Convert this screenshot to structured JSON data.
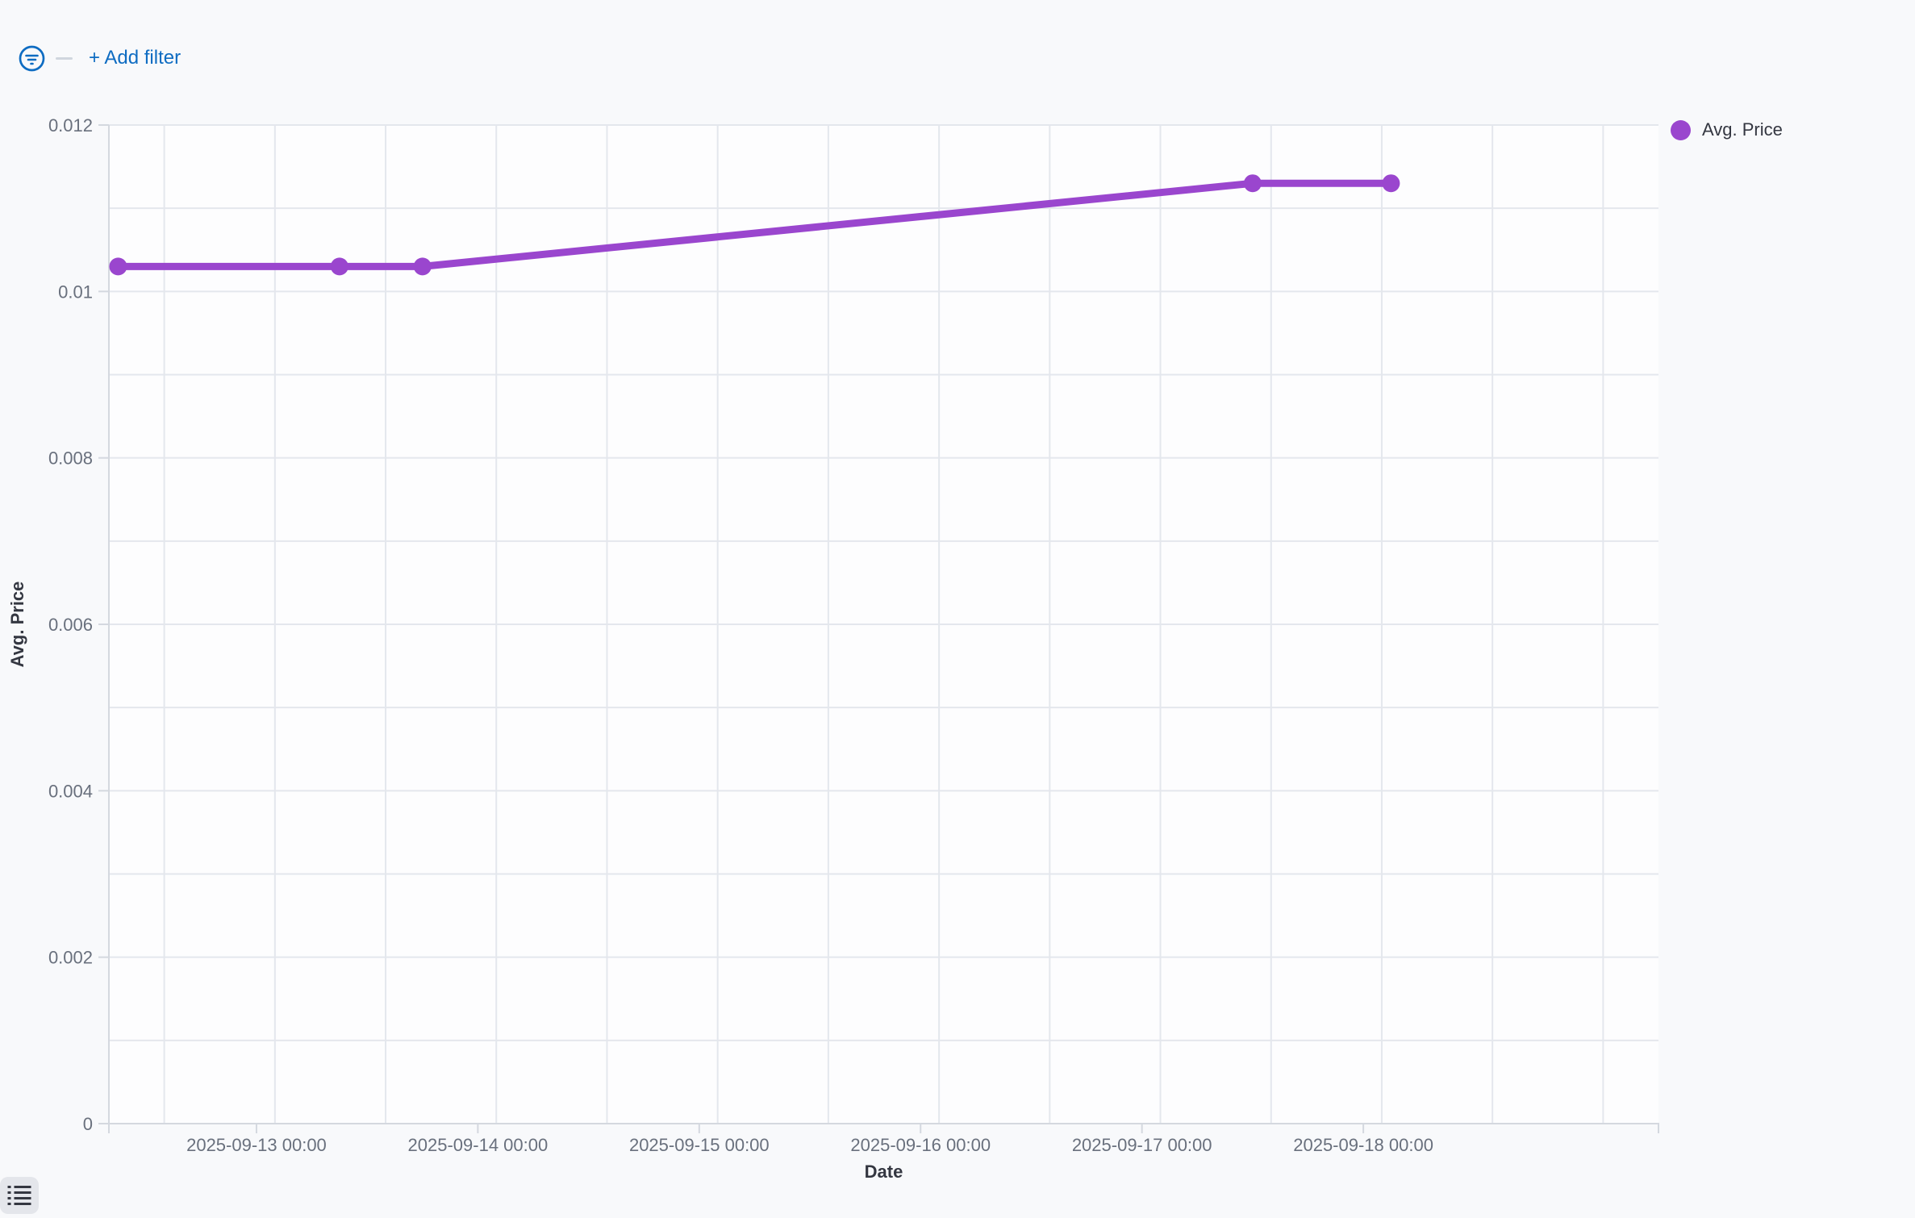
{
  "filter_bar": {
    "filter_icon": "filter-in-circle-icon",
    "add_filter_label": "+ Add filter"
  },
  "legend": {
    "position": "right",
    "items": [
      {
        "label": "Avg. Price",
        "color": "#9a46ce"
      }
    ]
  },
  "toolbar": {
    "bottom_left_icon": "unordered-list-icon"
  },
  "colors": {
    "link_blue": "#0e6cc2",
    "series_purple": "#9a46ce",
    "gridline": "#e4e7ed",
    "axis_line": "#d4d8df",
    "tick_label": "#69707d",
    "axis_title": "#343741",
    "page_background": "#f8f9fb",
    "plot_background": "#fdfdfe"
  },
  "chart_data": {
    "type": "line",
    "title": "",
    "xlabel": "Date",
    "ylabel": "Avg. Price",
    "legend_position": "right",
    "grid": true,
    "ylim": [
      0,
      0.012
    ],
    "y_grid_step": 0.001,
    "y_ticks": [
      {
        "v": 0,
        "label": "0"
      },
      {
        "v": 0.002,
        "label": "0.002"
      },
      {
        "v": 0.004,
        "label": "0.004"
      },
      {
        "v": 0.006,
        "label": "0.006"
      },
      {
        "v": 0.008,
        "label": "0.008"
      },
      {
        "v": 0.01,
        "label": "0.01"
      },
      {
        "v": 0.012,
        "label": "0.012"
      }
    ],
    "x_domain": [
      "2025-09-12 08:00",
      "2025-09-19 08:00"
    ],
    "x_ticks": [
      {
        "t": "2025-09-12 08:00",
        "label": ""
      },
      {
        "t": "2025-09-13 00:00",
        "label": "2025-09-13 00:00"
      },
      {
        "t": "2025-09-14 00:00",
        "label": "2025-09-14 00:00"
      },
      {
        "t": "2025-09-15 00:00",
        "label": "2025-09-15 00:00"
      },
      {
        "t": "2025-09-16 00:00",
        "label": "2025-09-16 00:00"
      },
      {
        "t": "2025-09-17 00:00",
        "label": "2025-09-17 00:00"
      },
      {
        "t": "2025-09-18 00:00",
        "label": "2025-09-18 00:00"
      },
      {
        "t": "2025-09-19 08:00",
        "label": ""
      }
    ],
    "x_gridlines": [
      "2025-09-12 14:00",
      "2025-09-13 02:00",
      "2025-09-13 14:00",
      "2025-09-14 02:00",
      "2025-09-14 14:00",
      "2025-09-15 02:00",
      "2025-09-15 14:00",
      "2025-09-16 02:00",
      "2025-09-16 14:00",
      "2025-09-17 02:00",
      "2025-09-17 14:00",
      "2025-09-18 02:00",
      "2025-09-18 14:00",
      "2025-09-19 02:00"
    ],
    "series": [
      {
        "name": "Avg. Price",
        "color": "#9a46ce",
        "points": [
          {
            "x": "2025-09-12 09:00",
            "y": 0.0103
          },
          {
            "x": "2025-09-13 09:00",
            "y": 0.0103
          },
          {
            "x": "2025-09-13 18:00",
            "y": 0.0103
          },
          {
            "x": "2025-09-17 12:00",
            "y": 0.0113
          },
          {
            "x": "2025-09-18 03:00",
            "y": 0.0113
          }
        ]
      }
    ]
  }
}
